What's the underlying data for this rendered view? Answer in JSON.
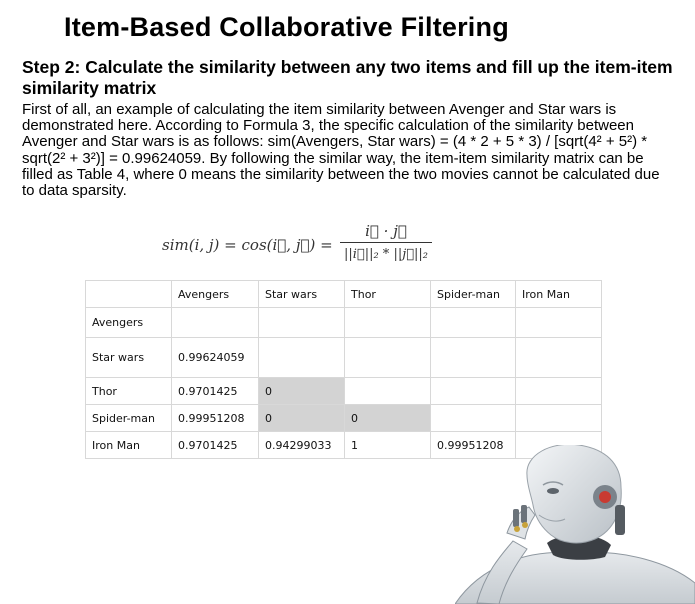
{
  "title": "Item-Based Collaborative Filtering",
  "step": "Step 2: Calculate the similarity between any two items and fill up the item-item similarity matrix",
  "paragraph": "First of all, an example of calculating the item similarity between Avenger and Star wars is demonstrated here. According to Formula 3, the specific calculation of the similarity between Avenger and Star wars is as follows: sim(Avengers, Star wars) = (4 * 2 + 5 * 3) / [sqrt(4² + 5²) * sqrt(2² + 3²)] = 0.99624059. By following the similar way, the item-item similarity matrix can be filled as Table 4, where 0 means the similarity between the two movies cannot be calculated due to data sparsity.",
  "formula": {
    "lhs": "sim(i, j) = cos(i⃗, j⃗) =",
    "numerator": "i⃗ · j⃗",
    "denominator": "||i⃗||₂ * ||j⃗||₂"
  },
  "table": {
    "headers": [
      "",
      "Avengers",
      "Star wars",
      "Thor",
      "Spider-man",
      "Iron Man"
    ],
    "rows": [
      [
        "Avengers",
        "",
        "",
        "",
        "",
        ""
      ],
      [
        "Star wars",
        "0.99624059",
        "",
        "",
        "",
        ""
      ],
      [
        "Thor",
        "0.9701425",
        "0",
        "",
        "",
        ""
      ],
      [
        "Spider-man",
        "0.99951208",
        "0",
        "0",
        "",
        ""
      ],
      [
        "Iron Man",
        "0.9701425",
        "0.94299033",
        "1",
        "0.99951208",
        ""
      ]
    ]
  }
}
